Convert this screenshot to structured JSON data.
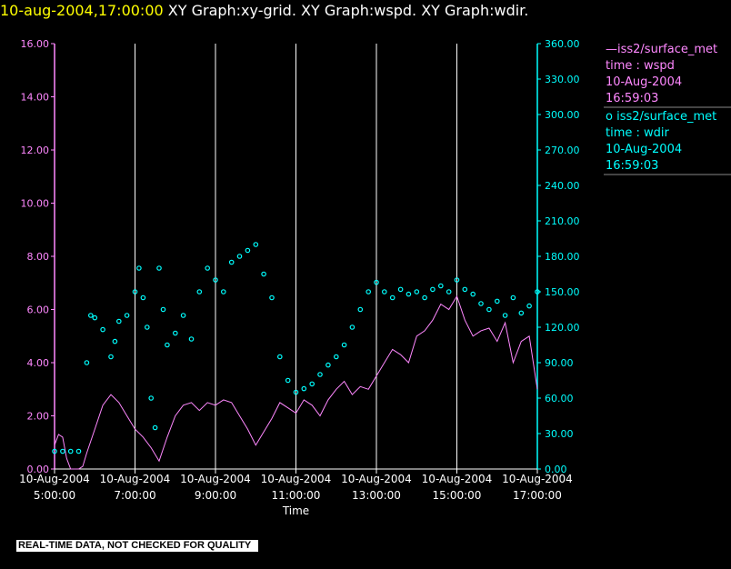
{
  "header": {
    "timestamp": "10-aug-2004,17:00:00",
    "title_rest": "XY Graph:xy-grid.  XY Graph:wspd.  XY Graph:wdir."
  },
  "legend": [
    {
      "line1": "—iss2/surface_met",
      "line2": "time : wspd",
      "line3": "10-Aug-2004",
      "line4": "16:59:03",
      "color": "#ff88ff"
    },
    {
      "line1": "o iss2/surface_met",
      "line2": "time : wdir",
      "line3": "10-Aug-2004",
      "line4": "16:59:03",
      "color": "#00ffff"
    }
  ],
  "footer": {
    "text": "REAL-TIME DATA, NOT CHECKED FOR QUALITY"
  },
  "chart_data": {
    "type": "line",
    "xlabel": "Time",
    "x_ticks": [
      {
        "date": "10-Aug-2004",
        "time": "5:00:00"
      },
      {
        "date": "10-Aug-2004",
        "time": "7:00:00"
      },
      {
        "date": "10-Aug-2004",
        "time": "9:00:00"
      },
      {
        "date": "10-Aug-2004",
        "time": "11:00:00"
      },
      {
        "date": "10-Aug-2004",
        "time": "13:00:00"
      },
      {
        "date": "10-Aug-2004",
        "time": "15:00:00"
      },
      {
        "date": "10-Aug-2004",
        "time": "17:00:00"
      }
    ],
    "xlim_hours": [
      5,
      17
    ],
    "y_left": {
      "ticks": [
        "0.00",
        "2.00",
        "4.00",
        "6.00",
        "8.00",
        "10.00",
        "12.00",
        "14.00",
        "16.00"
      ],
      "lim": [
        0,
        16
      ],
      "color": "#ff88ff"
    },
    "y_right": {
      "ticks": [
        "0.00",
        "30.00",
        "60.00",
        "90.00",
        "120.00",
        "150.00",
        "180.00",
        "210.00",
        "240.00",
        "270.00",
        "300.00",
        "330.00",
        "360.00"
      ],
      "lim": [
        0,
        360
      ],
      "color": "#00ffff"
    },
    "grid": "vertical lines at labeled x ticks",
    "series": [
      {
        "name": "iss2/surface_met time : wspd",
        "axis": "left",
        "style": "line",
        "color": "#ff88ff",
        "points": [
          [
            5.0,
            0.9
          ],
          [
            5.1,
            1.3
          ],
          [
            5.2,
            1.2
          ],
          [
            5.3,
            0.4
          ],
          [
            5.4,
            0.0
          ],
          [
            5.5,
            0.0
          ],
          [
            5.6,
            0.0
          ],
          [
            5.7,
            0.1
          ],
          [
            5.8,
            0.6
          ],
          [
            6.0,
            1.5
          ],
          [
            6.2,
            2.4
          ],
          [
            6.4,
            2.8
          ],
          [
            6.6,
            2.5
          ],
          [
            6.8,
            2.0
          ],
          [
            7.0,
            1.5
          ],
          [
            7.2,
            1.2
          ],
          [
            7.4,
            0.8
          ],
          [
            7.6,
            0.3
          ],
          [
            7.8,
            1.2
          ],
          [
            8.0,
            2.0
          ],
          [
            8.2,
            2.4
          ],
          [
            8.4,
            2.5
          ],
          [
            8.6,
            2.2
          ],
          [
            8.8,
            2.5
          ],
          [
            9.0,
            2.4
          ],
          [
            9.2,
            2.6
          ],
          [
            9.4,
            2.5
          ],
          [
            9.6,
            2.0
          ],
          [
            9.8,
            1.5
          ],
          [
            10.0,
            0.9
          ],
          [
            10.2,
            1.4
          ],
          [
            10.4,
            1.9
          ],
          [
            10.6,
            2.5
          ],
          [
            10.8,
            2.3
          ],
          [
            11.0,
            2.1
          ],
          [
            11.2,
            2.6
          ],
          [
            11.4,
            2.4
          ],
          [
            11.6,
            2.0
          ],
          [
            11.8,
            2.6
          ],
          [
            12.0,
            3.0
          ],
          [
            12.2,
            3.3
          ],
          [
            12.4,
            2.8
          ],
          [
            12.6,
            3.1
          ],
          [
            12.8,
            3.0
          ],
          [
            13.0,
            3.5
          ],
          [
            13.2,
            4.0
          ],
          [
            13.4,
            4.5
          ],
          [
            13.6,
            4.3
          ],
          [
            13.8,
            4.0
          ],
          [
            14.0,
            5.0
          ],
          [
            14.2,
            5.2
          ],
          [
            14.4,
            5.6
          ],
          [
            14.6,
            6.2
          ],
          [
            14.8,
            6.0
          ],
          [
            15.0,
            6.5
          ],
          [
            15.2,
            5.6
          ],
          [
            15.4,
            5.0
          ],
          [
            15.6,
            5.2
          ],
          [
            15.8,
            5.3
          ],
          [
            16.0,
            4.8
          ],
          [
            16.2,
            5.5
          ],
          [
            16.4,
            4.0
          ],
          [
            16.6,
            4.8
          ],
          [
            16.8,
            5.0
          ],
          [
            17.0,
            3.0
          ]
        ]
      },
      {
        "name": "iss2/surface_met time : wdir",
        "axis": "right",
        "style": "scatter",
        "color": "#00ffff",
        "points": [
          [
            5.0,
            15
          ],
          [
            5.2,
            15
          ],
          [
            5.4,
            15
          ],
          [
            5.6,
            15
          ],
          [
            5.8,
            90
          ],
          [
            5.9,
            130
          ],
          [
            6.0,
            128
          ],
          [
            6.2,
            118
          ],
          [
            6.4,
            95
          ],
          [
            6.5,
            108
          ],
          [
            6.6,
            125
          ],
          [
            6.8,
            130
          ],
          [
            7.0,
            150
          ],
          [
            7.1,
            170
          ],
          [
            7.2,
            145
          ],
          [
            7.3,
            120
          ],
          [
            7.4,
            60
          ],
          [
            7.5,
            35
          ],
          [
            7.6,
            170
          ],
          [
            7.7,
            135
          ],
          [
            7.8,
            105
          ],
          [
            8.0,
            115
          ],
          [
            8.2,
            130
          ],
          [
            8.4,
            110
          ],
          [
            8.6,
            150
          ],
          [
            8.8,
            170
          ],
          [
            9.0,
            160
          ],
          [
            9.2,
            150
          ],
          [
            9.4,
            175
          ],
          [
            9.6,
            180
          ],
          [
            9.8,
            185
          ],
          [
            10.0,
            190
          ],
          [
            10.2,
            165
          ],
          [
            10.4,
            145
          ],
          [
            10.6,
            95
          ],
          [
            10.8,
            75
          ],
          [
            11.0,
            65
          ],
          [
            11.2,
            68
          ],
          [
            11.4,
            72
          ],
          [
            11.6,
            80
          ],
          [
            11.8,
            88
          ],
          [
            12.0,
            95
          ],
          [
            12.2,
            105
          ],
          [
            12.4,
            120
          ],
          [
            12.6,
            135
          ],
          [
            12.8,
            150
          ],
          [
            13.0,
            158
          ],
          [
            13.2,
            150
          ],
          [
            13.4,
            145
          ],
          [
            13.6,
            152
          ],
          [
            13.8,
            148
          ],
          [
            14.0,
            150
          ],
          [
            14.2,
            145
          ],
          [
            14.4,
            152
          ],
          [
            14.6,
            155
          ],
          [
            14.8,
            150
          ],
          [
            15.0,
            160
          ],
          [
            15.2,
            152
          ],
          [
            15.4,
            148
          ],
          [
            15.6,
            140
          ],
          [
            15.8,
            135
          ],
          [
            16.0,
            142
          ],
          [
            16.2,
            130
          ],
          [
            16.4,
            145
          ],
          [
            16.6,
            132
          ],
          [
            16.8,
            138
          ],
          [
            17.0,
            150
          ]
        ]
      }
    ]
  }
}
